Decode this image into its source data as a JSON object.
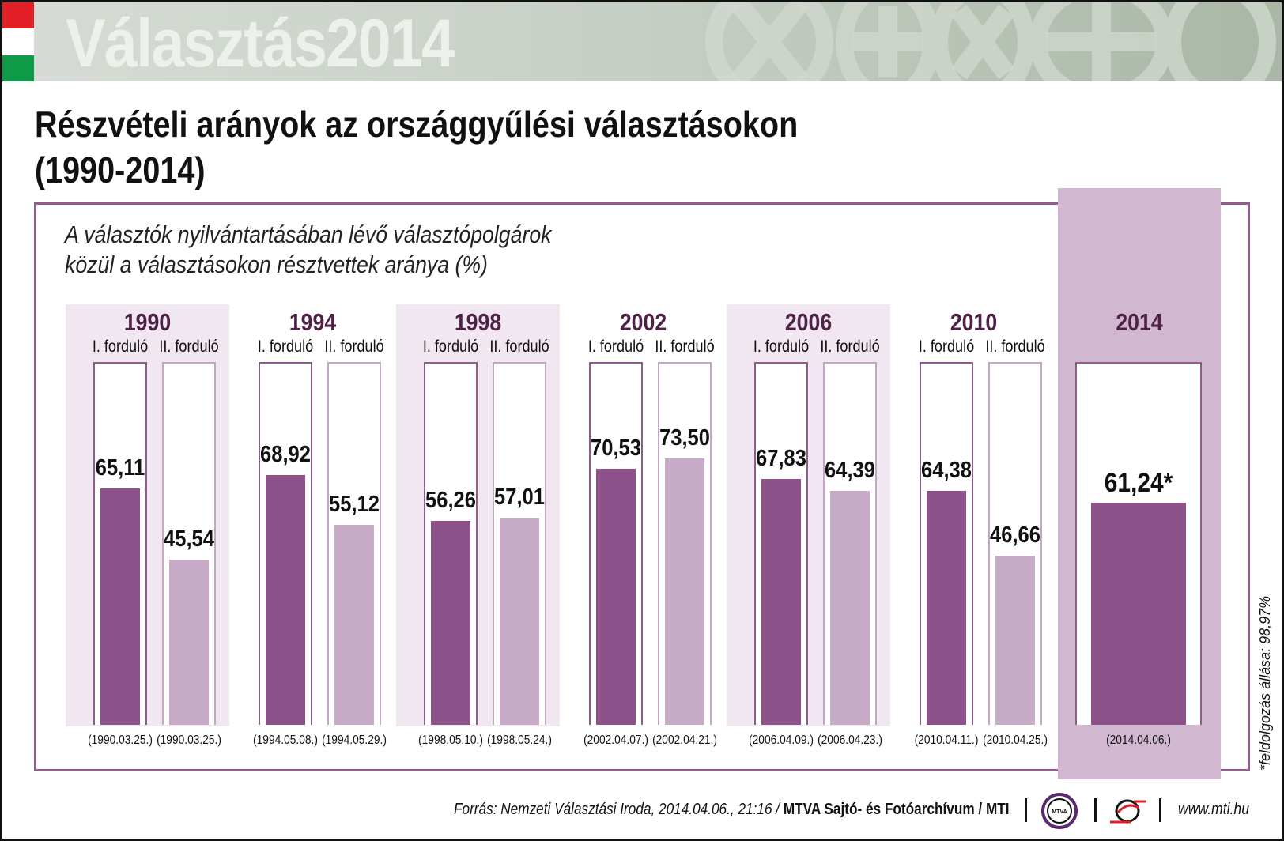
{
  "banner": {
    "title": "Választás2014",
    "flag_colors": [
      "#e21f26",
      "#ffffff",
      "#0f9a48"
    ],
    "decoration_icons": [
      "x-ballot-icon",
      "plus-ballot-icon",
      "x-ballot-icon",
      "plus-ballot-icon"
    ]
  },
  "header": {
    "title_line1": "Részvételi arányok az országgyűlési választásokon",
    "title_line2": "(1990-2014)"
  },
  "colors": {
    "round1": "#8e528b",
    "round2": "#c8abc7",
    "group_shade": "#f1e7f0",
    "highlight": "#d1b8d0",
    "year_text": "#4e2147"
  },
  "chart_data": {
    "type": "bar",
    "title": "Részvételi arányok az országgyűlési választásokon (1990-2014)",
    "subtitle_line1": "A választók nyilvántartásában lévő választópolgárok",
    "subtitle_line2": "közül a választásokon résztvettek aránya (%)",
    "ylim": [
      0,
      100
    ],
    "round_labels": [
      "I. forduló",
      "II. forduló"
    ],
    "groups": [
      {
        "year": "1990",
        "rounds": [
          {
            "label": "I. forduló",
            "value": 65.11,
            "value_label": "65,11",
            "date": "(1990.03.25.)"
          },
          {
            "label": "II. forduló",
            "value": 45.54,
            "value_label": "45,54",
            "date": "(1990.03.25.)"
          }
        ]
      },
      {
        "year": "1994",
        "rounds": [
          {
            "label": "I. forduló",
            "value": 68.92,
            "value_label": "68,92",
            "date": "(1994.05.08.)"
          },
          {
            "label": "II. forduló",
            "value": 55.12,
            "value_label": "55,12",
            "date": "(1994.05.29.)"
          }
        ]
      },
      {
        "year": "1998",
        "rounds": [
          {
            "label": "I. forduló",
            "value": 56.26,
            "value_label": "56,26",
            "date": "(1998.05.10.)"
          },
          {
            "label": "II. forduló",
            "value": 57.01,
            "value_label": "57,01",
            "date": "(1998.05.24.)"
          }
        ]
      },
      {
        "year": "2002",
        "rounds": [
          {
            "label": "I. forduló",
            "value": 70.53,
            "value_label": "70,53",
            "date": "(2002.04.07.)"
          },
          {
            "label": "II. forduló",
            "value": 73.5,
            "value_label": "73,50",
            "date": "(2002.04.21.)"
          }
        ]
      },
      {
        "year": "2006",
        "rounds": [
          {
            "label": "I. forduló",
            "value": 67.83,
            "value_label": "67,83",
            "date": "(2006.04.09.)"
          },
          {
            "label": "II. forduló",
            "value": 64.39,
            "value_label": "64,39",
            "date": "(2006.04.23.)"
          }
        ]
      },
      {
        "year": "2010",
        "rounds": [
          {
            "label": "I. forduló",
            "value": 64.38,
            "value_label": "64,38",
            "date": "(2010.04.11.)"
          },
          {
            "label": "II. forduló",
            "value": 46.66,
            "value_label": "46,66",
            "date": "(2010.04.25.)"
          }
        ]
      },
      {
        "year": "2014",
        "rounds": [
          {
            "label": "",
            "value": 61.24,
            "value_label": "61,24*",
            "date": "(2014.04.06.)"
          }
        ]
      }
    ],
    "footnote": "*feldolgozás állása: 98,97%"
  },
  "footer": {
    "source_italic": "Forrás: Nemzeti Választási Iroda, 2014.04.06., 21:16 / ",
    "source_bold": "MTVA Sajtó- és Fotóarchívum / MTI",
    "mtva_logo_text": "MTVA",
    "url": "www.mti.hu"
  }
}
